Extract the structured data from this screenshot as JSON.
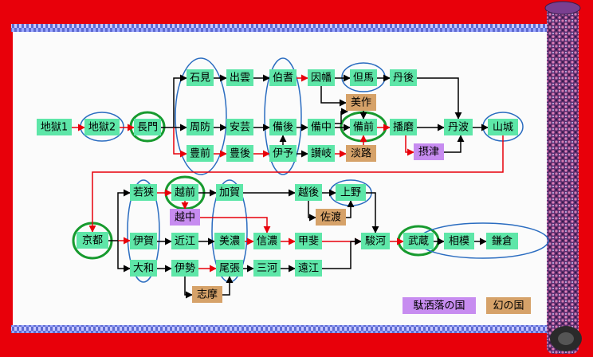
{
  "colors": {
    "frame_red": "#e8000a",
    "paper": "#fbfbfb",
    "node_green": "#5ee6a8",
    "node_purple": "#c78cf0",
    "node_tan": "#d6a269",
    "edge_black": "#000000",
    "edge_red": "#e8000a",
    "ellipse_blue": "#2a6cc0",
    "ellipse_green": "#179a2e"
  },
  "nodes": {
    "jigoku1": "地獄1",
    "jigoku2": "地獄2",
    "nagato": "長門",
    "iwami": "石見",
    "izumo": "出雲",
    "houki": "伯耆",
    "inaba": "因幡",
    "tajima": "但馬",
    "tango": "丹後",
    "mimasaka": "美作",
    "suou": "周防",
    "aki": "安芸",
    "bingo": "備後",
    "bicchu": "備中",
    "bizen": "備前",
    "harima": "播磨",
    "tanba": "丹波",
    "yamashiro": "山城",
    "buzen": "豊前",
    "bungo": "豊後",
    "iyo": "伊予",
    "sanuki": "讃岐",
    "awaji": "淡路",
    "settsu": "摂津",
    "kyoto": "京都",
    "wakasa": "若狭",
    "echizen": "越前",
    "kaga": "加賀",
    "echigo": "越後",
    "kouzuke": "上野",
    "etchu": "越中",
    "sado": "佐渡",
    "iga": "伊賀",
    "oumi": "近江",
    "mino": "美濃",
    "shinano": "信濃",
    "kai": "甲斐",
    "suruga": "駿河",
    "musashi": "武蔵",
    "sagami": "相模",
    "kamakura": "鎌倉",
    "yamato": "大和",
    "ise": "伊勢",
    "owari": "尾張",
    "mikawa": "三河",
    "toutoumi": "遠江",
    "shima": "志摩"
  },
  "legend": {
    "joke_provinces": "駄洒落の国",
    "phantom_provinces": "幻の国"
  }
}
